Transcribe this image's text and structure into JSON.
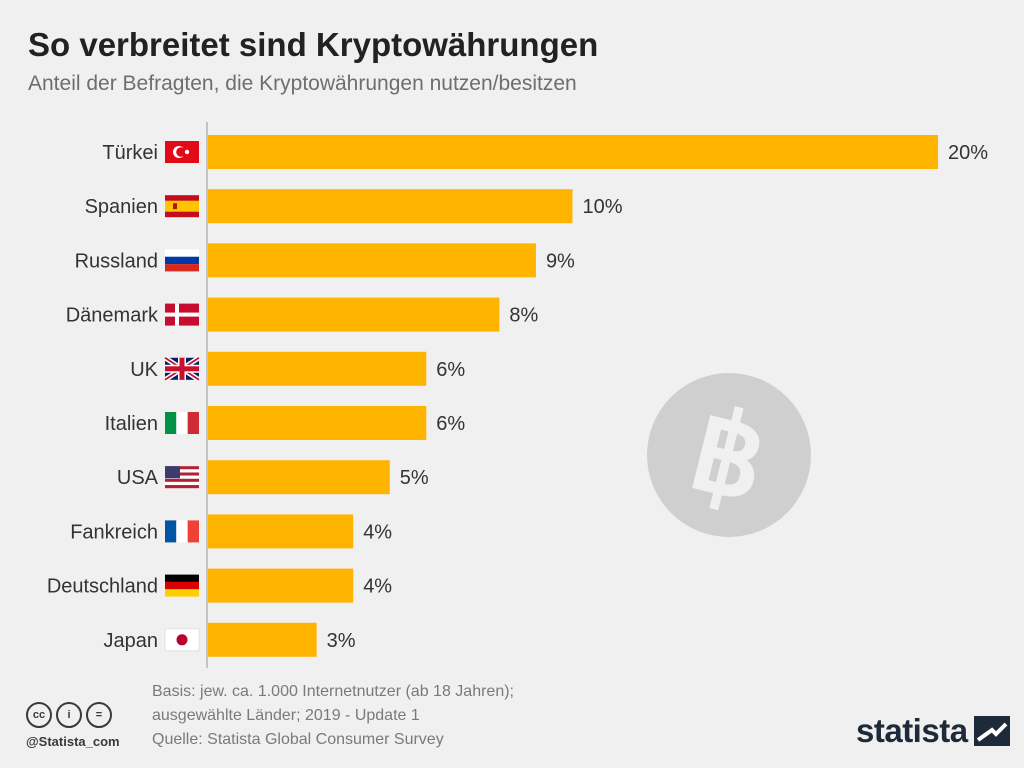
{
  "title": "So verbreitet sind Kryptowährungen",
  "subtitle": "Anteil der Befragten, die Kryptowährungen nutzen/besitzen",
  "chart_data": {
    "type": "bar",
    "orientation": "horizontal",
    "categories": [
      "Türkei",
      "Spanien",
      "Russland",
      "Dänemark",
      "UK",
      "Italien",
      "USA",
      "Fankreich",
      "Deutschland",
      "Japan"
    ],
    "values": [
      20,
      10,
      9,
      8,
      6,
      6,
      5,
      4,
      4,
      3
    ],
    "value_labels": [
      "20%",
      "10%",
      "9%",
      "8%",
      "6%",
      "6%",
      "5%",
      "4%",
      "4%",
      "3%"
    ],
    "flags": [
      "flag-turkey-icon",
      "flag-spain-icon",
      "flag-russia-icon",
      "flag-denmark-icon",
      "flag-uk-icon",
      "flag-italy-icon",
      "flag-usa-icon",
      "flag-france-icon",
      "flag-germany-icon",
      "flag-japan-icon"
    ],
    "xlim": [
      0,
      20
    ],
    "grid": false,
    "legend": "none",
    "bar_color": "#ffb400"
  },
  "decoration": {
    "icon": "bitcoin-icon",
    "color": "#cfcfcf"
  },
  "footer": {
    "basis_line1": "Basis: jew. ca. 1.000 Internetnutzer (ab 18 Jahren);",
    "basis_line2": "ausgewählte Länder; 2019 - Update 1",
    "source": "Quelle: Statista Global Consumer Survey",
    "handle": "@Statista_com",
    "brand": "statista",
    "license_icons": [
      "creative-commons-icon",
      "attribution-icon",
      "no-derivatives-icon"
    ],
    "license_glyphs": [
      "cc",
      "i",
      "="
    ]
  }
}
